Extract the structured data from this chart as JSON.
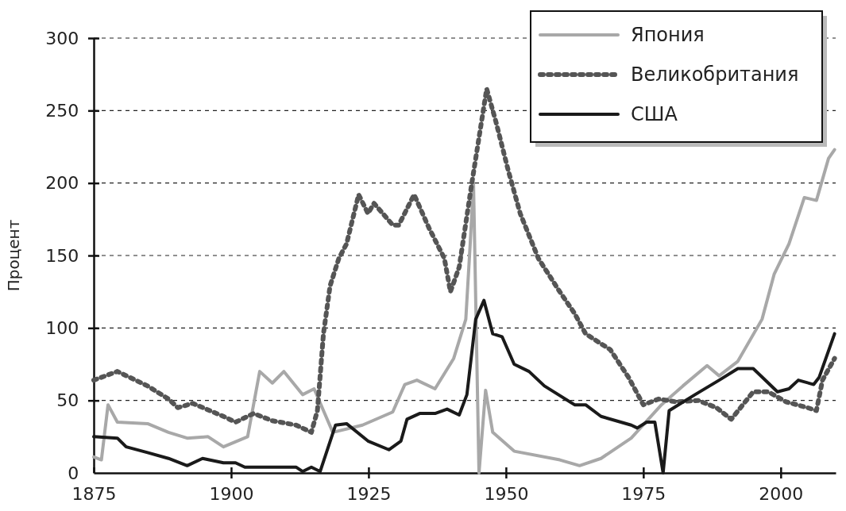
{
  "chart_data": {
    "type": "line",
    "ylabel": "Процент",
    "xlim": [
      1875,
      2010
    ],
    "xticks": [
      1875,
      1900,
      1925,
      1950,
      1975,
      2000
    ],
    "ylim": [
      0,
      300
    ],
    "yticks": [
      0,
      50,
      100,
      150,
      200,
      250,
      300
    ],
    "grid": "y",
    "legend": "top right",
    "marker": "none",
    "series": [
      {
        "name": "Япония",
        "color": "#a8a8a8",
        "line_style": "solid",
        "x": [
          1875,
          1876.4,
          1877.6,
          1879.3,
          1884.8,
          1888.6,
          1892,
          1895.8,
          1898.6,
          1903,
          1905.2,
          1907.5,
          1909.6,
          1913,
          1915.1,
          1916.8,
          1918.5,
          1923.9,
          1929.4,
          1931.6,
          1933.8,
          1937.1,
          1940.5,
          1942.7,
          1943.5,
          1944.1,
          1945.1,
          1946.3,
          1947.6,
          1951.5,
          1959.8,
          1963.4,
          1967.3,
          1972.8,
          1978.3,
          1982.2,
          1986.6,
          1988.8,
          1992.2,
          1996.6,
          1998.8,
          2001.5,
          2004.3,
          2006.5,
          2008.7,
          2009.8
        ],
        "values": [
          11,
          9,
          47,
          35,
          34,
          28,
          24,
          25,
          18,
          25,
          70,
          62,
          70,
          54,
          58,
          43,
          28,
          33,
          42,
          61,
          64,
          58,
          79,
          106,
          158,
          200,
          0,
          57,
          28,
          15,
          9,
          5,
          10,
          24,
          47,
          60,
          74,
          67,
          77,
          106,
          137,
          158,
          190,
          188,
          217,
          223
        ]
      },
      {
        "name": "Великобритания",
        "color": "#555555",
        "line_style": "dotted",
        "x": [
          1875,
          1879.3,
          1884.8,
          1888.6,
          1890.3,
          1893,
          1898.6,
          1900.8,
          1904.1,
          1907.5,
          1911.8,
          1914.6,
          1915.7,
          1916.8,
          1918,
          1919.6,
          1921,
          1923.2,
          1924.9,
          1926,
          1929.4,
          1930.5,
          1933.3,
          1936,
          1938.8,
          1939.9,
          1941.5,
          1943.8,
          1946.5,
          1948.2,
          1950.4,
          1952.6,
          1955.9,
          1959.8,
          1962.5,
          1964.5,
          1969,
          1972.3,
          1975,
          1977.8,
          1981,
          1985,
          1988.3,
          1991,
          1995,
          1997.7,
          2001,
          2004.9,
          2006.5,
          2007.6,
          2009.8
        ],
        "values": [
          64,
          70,
          60,
          51,
          45,
          48,
          39,
          35,
          41,
          36,
          33,
          28,
          43,
          96,
          129,
          148,
          158,
          192,
          179,
          186,
          171,
          171,
          192,
          169,
          148,
          125,
          142,
          200,
          265,
          242,
          209,
          179,
          148,
          125,
          110,
          96,
          85,
          66,
          47,
          51,
          49,
          50,
          45,
          37,
          56,
          56,
          49,
          45,
          43,
          64,
          79
        ]
      },
      {
        "name": "США",
        "color": "#1a1a1a",
        "line_style": "solid",
        "x": [
          1875,
          1879.3,
          1880.9,
          1884.8,
          1888.6,
          1892,
          1894.8,
          1898.6,
          1900.8,
          1902.5,
          1911.8,
          1913,
          1914.6,
          1916.2,
          1919,
          1921,
          1924.9,
          1928.7,
          1930.9,
          1932,
          1934.3,
          1937.1,
          1939.3,
          1941.5,
          1942.9,
          1944.5,
          1946,
          1947.6,
          1949.3,
          1951.5,
          1954.2,
          1957,
          1962.5,
          1964.5,
          1967.3,
          1972.8,
          1973.9,
          1975.6,
          1977.1,
          1978.6,
          1979.7,
          1984.4,
          1988.8,
          1992.2,
          1995,
          1999.4,
          2001.5,
          2003.2,
          2006,
          2007,
          2009.8
        ],
        "values": [
          25,
          24,
          18,
          14,
          10,
          5,
          10,
          7,
          7,
          4,
          4,
          1,
          4,
          1,
          33,
          34,
          22,
          16,
          22,
          37,
          41,
          41,
          44,
          40,
          54,
          106,
          119,
          96,
          94,
          75,
          70,
          60,
          47,
          47,
          39,
          33,
          31,
          35,
          35,
          0,
          43,
          54,
          64,
          72,
          72,
          56,
          58,
          64,
          61,
          66,
          96
        ]
      }
    ]
  }
}
